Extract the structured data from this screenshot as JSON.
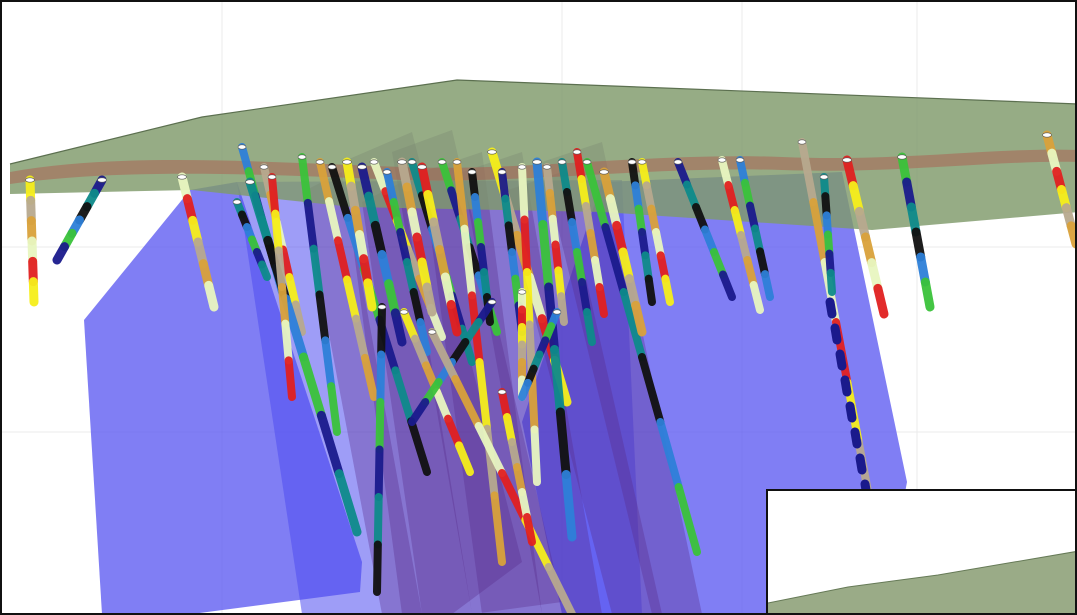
{
  "viewer": {
    "background": "#ffffff",
    "frame_color": "#111111",
    "surface_color": "#8fa27a",
    "surface_band_color": "#a8584f",
    "plane_color": "#4f4cf0",
    "plane_dark_color": "#4a2c7a"
  },
  "legend_colors": [
    "#f5ee1a",
    "#3ac23a",
    "#b7a98e",
    "#1a1a8c",
    "#d9a13a",
    "#0e8a8a",
    "#e8f5c0",
    "#111111",
    "#e02020",
    "#2d7fd8"
  ],
  "inset": {
    "visible": true
  }
}
